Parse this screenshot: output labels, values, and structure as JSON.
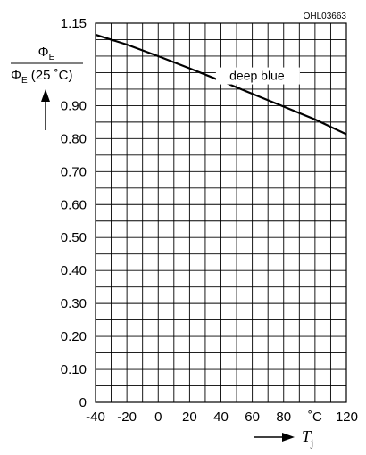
{
  "code": "OHL03663",
  "colors": {
    "line": "#000000",
    "grid": "#000000",
    "background": "#ffffff"
  },
  "chart_data": {
    "type": "line",
    "title": "",
    "xlabel": {
      "symbol": "T",
      "subscript": "j"
    },
    "ylabel": {
      "numerator": {
        "symbol": "Φ",
        "subscript": "E"
      },
      "denominator": {
        "symbol": "Φ",
        "subscript": "E",
        "suffix": " (25 ˚C)"
      }
    },
    "xlim": [
      -40,
      120
    ],
    "ylim": [
      0,
      1.15
    ],
    "x_ticks": [
      -40,
      -20,
      0,
      20,
      40,
      60,
      80,
      100,
      120
    ],
    "x_tick_labels": [
      "-40",
      "-20",
      "0",
      "20",
      "40",
      "60",
      "80",
      "˚C",
      "120"
    ],
    "y_ticks": [
      0,
      0.1,
      0.2,
      0.3,
      0.4,
      0.5,
      0.6,
      0.7,
      0.8,
      0.9,
      1.15
    ],
    "y_tick_labels": [
      "0",
      "0.10",
      "0.20",
      "0.30",
      "0.40",
      "0.50",
      "0.60",
      "0.70",
      "0.80",
      "0.90",
      "1.15"
    ],
    "grid": true,
    "x_grid_step": 10,
    "y_grid_step": 0.05,
    "series": [
      {
        "name": "deep blue",
        "x": [
          -40,
          -20,
          0,
          20,
          40,
          60,
          80,
          100,
          120
        ],
        "y": [
          1.115,
          1.085,
          1.05,
          1.013,
          0.975,
          0.936,
          0.897,
          0.858,
          0.813
        ]
      }
    ]
  }
}
